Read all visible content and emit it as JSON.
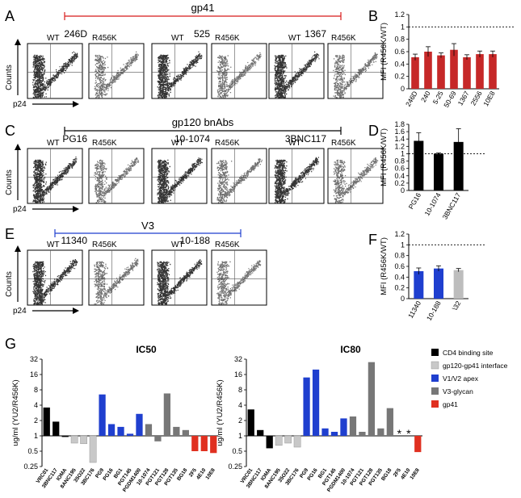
{
  "panels": {
    "A": {
      "letter": "A",
      "bracket_label": "gp41",
      "bracket_color": "#d81b1b",
      "plot_labels": [
        "WT",
        "246D",
        "R456K",
        "WT",
        "525",
        "R456K",
        "WT",
        "1367",
        "R456K"
      ],
      "y_axis": "Counts",
      "x_axis": "p24"
    },
    "C": {
      "letter": "C",
      "bracket_label": "gp120 bnAbs",
      "bracket_color": "#000000",
      "plot_labels": [
        "WT",
        "PG16",
        "R456K",
        "WT",
        "10-1074",
        "R456K",
        "WT",
        "3BNC117",
        "R456K"
      ],
      "y_axis": "Counts",
      "x_axis": "p24"
    },
    "E": {
      "letter": "E",
      "bracket_label": "V3",
      "bracket_color": "#1f3fcf",
      "plot_labels": [
        "WT",
        "11340",
        "R456K",
        "WT",
        "10-188",
        "R456K"
      ],
      "y_axis": "Counts",
      "x_axis": "p24"
    },
    "G": {
      "letter": "G"
    }
  },
  "chart_data": [
    {
      "id": "B",
      "letter": "B",
      "type": "bar",
      "ylabel": "MFI (R456K/WT)",
      "ylim": [
        0,
        1.2
      ],
      "yticks": [
        "0",
        "0.2",
        "0.4",
        "0.6",
        "0.8",
        "1",
        "1.2"
      ],
      "reference_line": 1,
      "categories": [
        "246D",
        "240",
        "5-25",
        "50-69",
        "1367",
        "2556",
        "10E8"
      ],
      "values": [
        0.51,
        0.6,
        0.54,
        0.63,
        0.51,
        0.56,
        0.56
      ],
      "errors": [
        0.05,
        0.08,
        0.04,
        0.1,
        0.04,
        0.05,
        0.05
      ],
      "colors": [
        "#c62828",
        "#c62828",
        "#c62828",
        "#c62828",
        "#c62828",
        "#c62828",
        "#c62828"
      ]
    },
    {
      "id": "D",
      "letter": "D",
      "type": "bar",
      "ylabel": "MFI (R456K/WT)",
      "ylim": [
        0,
        1.8
      ],
      "yticks": [
        "0",
        "0.2",
        "0.4",
        "0.6",
        "0.8",
        "1",
        "1.2",
        "1.4",
        "1.6",
        "1.8"
      ],
      "reference_line": 1,
      "categories": [
        "PG16",
        "10-1074",
        "3BNC117"
      ],
      "values": [
        1.35,
        1.0,
        1.32
      ],
      "errors": [
        0.22,
        0.02,
        0.36
      ],
      "colors": [
        "#000000",
        "#000000",
        "#000000"
      ]
    },
    {
      "id": "F",
      "letter": "F",
      "type": "bar",
      "ylabel": "MFI (R456K/WT)",
      "ylim": [
        0,
        1.2
      ],
      "yticks": [
        "0",
        "0.2",
        "0.4",
        "0.6",
        "0.8",
        "1",
        "1.2"
      ],
      "reference_line": 1,
      "categories": [
        "11340",
        "10-188",
        "\\32"
      ],
      "values": [
        0.51,
        0.56,
        0.53
      ],
      "errors": [
        0.06,
        0.05,
        0.03
      ],
      "colors": [
        "#1f3fcf",
        "#1f3fcf",
        "#bdbdbd"
      ]
    },
    {
      "id": "G1",
      "type": "bar",
      "title": "IC50",
      "ylabel": "ug/ml (YU2/R456K)",
      "yscale": "log2",
      "ylim": [
        0.25,
        32
      ],
      "yticks": [
        "0.25",
        "0.5",
        "1",
        "2",
        "4",
        "8",
        "16",
        "32"
      ],
      "baseline": 1,
      "categories": [
        "VRC01",
        "3BNC117",
        "IOMA",
        "8ANC195",
        "35O22",
        "3BC176",
        "PG9",
        "PG16",
        "BG1",
        "PGT145",
        "PGDM1400",
        "10-1074",
        "PGT121",
        "PGT128",
        "PGT135",
        "BG18",
        "2F5",
        "4E10",
        "10E8"
      ],
      "values": [
        3.6,
        1.9,
        0.95,
        0.72,
        0.7,
        0.3,
        6.5,
        1.7,
        1.5,
        1.1,
        2.7,
        1.7,
        0.78,
        6.8,
        1.5,
        1.3,
        0.5,
        0.5,
        0.46
      ],
      "series_index": [
        0,
        0,
        0,
        1,
        1,
        1,
        2,
        2,
        2,
        2,
        2,
        3,
        3,
        3,
        3,
        3,
        4,
        4,
        4
      ]
    },
    {
      "id": "G2",
      "type": "bar",
      "title": "IC80",
      "ylabel": "ug/ml (YU2/R456K)",
      "yscale": "log2",
      "ylim": [
        0.25,
        32
      ],
      "yticks": [
        "0.25",
        "0.5",
        "1",
        "2",
        "4",
        "8",
        "16",
        "32"
      ],
      "baseline": 1,
      "categories": [
        "VRC01",
        "3BNC117",
        "IOMA",
        "8ANC195",
        "35O22",
        "3BC176",
        "PG9",
        "PG16",
        "BG1",
        "PGT145",
        "PGDM1400",
        "10-1074",
        "PGT121",
        "PGT128",
        "PGT135",
        "BG18",
        "2F5",
        "4E10",
        "10E8"
      ],
      "values": [
        3.3,
        1.3,
        0.57,
        0.65,
        0.72,
        0.6,
        14,
        20,
        1.4,
        1.2,
        2.2,
        2.4,
        1.2,
        28,
        1.4,
        3.5,
        null,
        null,
        0.48
      ],
      "series_index": [
        0,
        0,
        0,
        1,
        1,
        1,
        2,
        2,
        2,
        2,
        2,
        3,
        3,
        3,
        3,
        3,
        4,
        4,
        4
      ],
      "annotations": [
        {
          "category": "2F5",
          "text": "*"
        },
        {
          "category": "4E10",
          "text": "*"
        }
      ]
    }
  ],
  "legend": [
    {
      "label": "CD4 binding site",
      "color": "#000000"
    },
    {
      "label": "gp120-gp41 interface",
      "color": "#c8c8c8"
    },
    {
      "label": "V1/V2 apex",
      "color": "#1f3fcf"
    },
    {
      "label": "V3-glycan",
      "color": "#777777"
    },
    {
      "label": "gp41",
      "color": "#e03020"
    }
  ]
}
